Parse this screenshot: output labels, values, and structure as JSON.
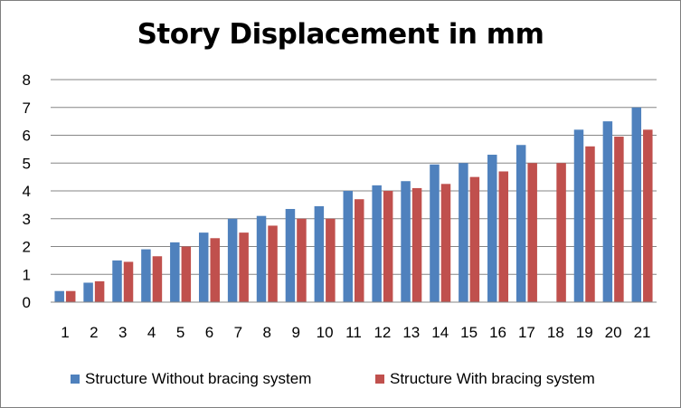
{
  "chart_data": {
    "type": "bar",
    "title": "Story Displacement in mm",
    "xlabel": "",
    "ylabel": "",
    "categories": [
      "1",
      "2",
      "3",
      "4",
      "5",
      "6",
      "7",
      "8",
      "9",
      "10",
      "11",
      "12",
      "13",
      "14",
      "15",
      "16",
      "17",
      "18",
      "19",
      "20",
      "21"
    ],
    "series": [
      {
        "name": "Structure Without bracing system",
        "color": "#4f81bd",
        "values": [
          0.4,
          0.7,
          1.5,
          1.9,
          2.15,
          2.5,
          3.0,
          3.1,
          3.35,
          3.45,
          4.0,
          4.2,
          4.35,
          4.95,
          5.0,
          5.3,
          5.65,
          null,
          6.2,
          6.5,
          7.0
        ]
      },
      {
        "name": "Structure With bracing system",
        "color": "#c0504d",
        "values": [
          0.4,
          0.75,
          1.45,
          1.65,
          2.0,
          2.3,
          2.5,
          2.75,
          3.0,
          3.0,
          3.7,
          4.0,
          4.1,
          4.25,
          4.5,
          4.7,
          5.0,
          5.0,
          5.6,
          5.95,
          6.2
        ]
      }
    ],
    "ylim": [
      0,
      8
    ],
    "yticks": [
      0,
      1,
      2,
      3,
      4,
      5,
      6,
      7,
      8
    ],
    "grid": true,
    "legend_position": "bottom"
  }
}
